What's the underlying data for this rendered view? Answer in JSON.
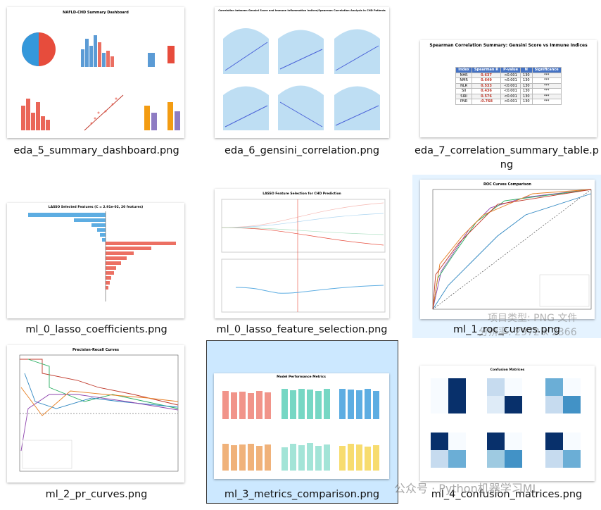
{
  "files": [
    {
      "name": "eda_5_summary_dashboard.png",
      "thumbnail_title": "NAFLD-CHD Summary Dashboard"
    },
    {
      "name": "eda_6_gensini_correlation.png",
      "thumbnail_title": "Correlation between Gensini Score and Immune Inflammation Indices/Spearman Correlation Analysis in CHD Patients"
    },
    {
      "name": "eda_7_correlation_summary_table.png",
      "thumbnail_title": "Spearman Correlation Summary: Gensini Score vs Immune Indices"
    },
    {
      "name": "ml_0_lasso_coefficients.png",
      "thumbnail_title": "LASSO Selected Features (C = 2.91e-02, 20 features)"
    },
    {
      "name": "ml_0_lasso_feature_selection.png",
      "thumbnail_title": "LASSO Feature Selection for CHD Prediction"
    },
    {
      "name": "ml_1_roc_curves.png",
      "thumbnail_title": "ROC Curves Comparison"
    },
    {
      "name": "ml_2_pr_curves.png",
      "thumbnail_title": "Precision-Recall Curves"
    },
    {
      "name": "ml_3_metrics_comparison.png",
      "thumbnail_title": "Model Performance Metrics"
    },
    {
      "name": "ml_4_confusion_matrices.png",
      "thumbnail_title": "Confusion Matrices"
    }
  ],
  "table": {
    "header": [
      "Index",
      "Spearman R",
      "P-value",
      "N",
      "Significance"
    ],
    "rows": [
      [
        "NHR",
        "0.637",
        "<0.001",
        "130",
        "***"
      ],
      [
        "NMR",
        "0.649",
        "<0.001",
        "130",
        "***"
      ],
      [
        "NLR",
        "0.533",
        "<0.001",
        "130",
        "***"
      ],
      [
        "SII",
        "0.436",
        "<0.001",
        "130",
        "***"
      ],
      [
        "SIRI",
        "0.576",
        "<0.001",
        "130",
        "***"
      ],
      [
        "PNR",
        "-0.768",
        "<0.001",
        "130",
        "***"
      ]
    ]
  },
  "tooltip": {
    "type": "项目类型: PNG 文件",
    "resolution": "分辨率: 2972 x 2366"
  },
  "watermark": "公众号 · Python机器学习ML"
}
